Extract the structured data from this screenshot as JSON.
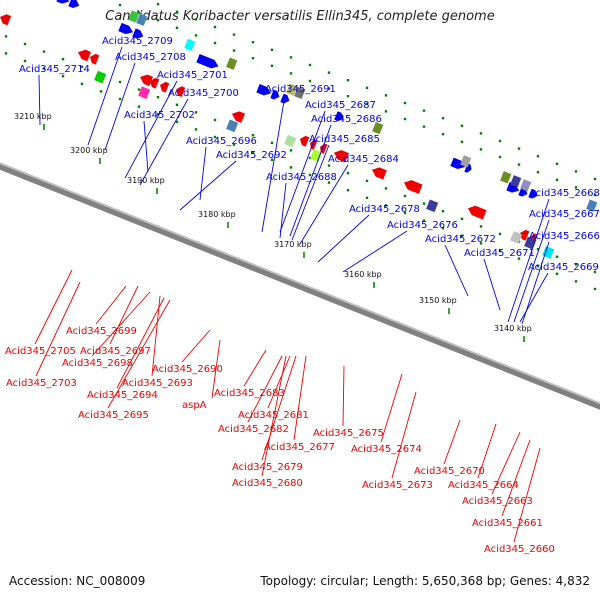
{
  "title": "Candidatus Koribacter versatilis Ellin345, complete genome",
  "footer": {
    "accession": "Accession: NC_008009",
    "stats": "Topology: circular; Length: 5,650,368 bp; Genes: 4,832"
  },
  "colors": {
    "forward_strand": "#0000ee",
    "reverse_strand": "#ee0000",
    "backbone": "#808080",
    "tick_mark": "#008000"
  },
  "ticks": [
    "3210 kbp",
    "3200 kbp",
    "3190 kbp",
    "3180 kbp",
    "3170 kbp",
    "3160 kbp",
    "3150 kbp",
    "3140 kbp"
  ],
  "forward_genes": [
    "Acid345_2714",
    "Acid345_2709",
    "Acid345_2708",
    "Acid345_2701",
    "Acid345_2700",
    "Acid345_2702",
    "Acid345_2696",
    "Acid345_2692",
    "Acid345_2691",
    "Acid345_2687",
    "Acid345_2686",
    "Acid345_2685",
    "Acid345_2684",
    "Acid345_2688",
    "Acid345_2678",
    "Acid345_2676",
    "Acid345_2672",
    "Acid345_2671",
    "Acid345_2669",
    "Acid345_2668",
    "Acid345_2667",
    "Acid345_2666"
  ],
  "reverse_genes": [
    "Acid345_2705",
    "Acid345_2699",
    "Acid345_2697",
    "Acid345_2698",
    "Acid345_2703",
    "Acid345_2693",
    "Acid345_2694",
    "Acid345_2695",
    "Acid345_2690",
    "aspA",
    "Acid345_2683",
    "Acid345_2681",
    "Acid345_2682",
    "Acid345_2677",
    "Acid345_2679",
    "Acid345_2680",
    "Acid345_2675",
    "Acid345_2674",
    "Acid345_2673",
    "Acid345_2670",
    "Acid345_2664",
    "Acid345_2663",
    "Acid345_2661",
    "Acid345_2660"
  ]
}
